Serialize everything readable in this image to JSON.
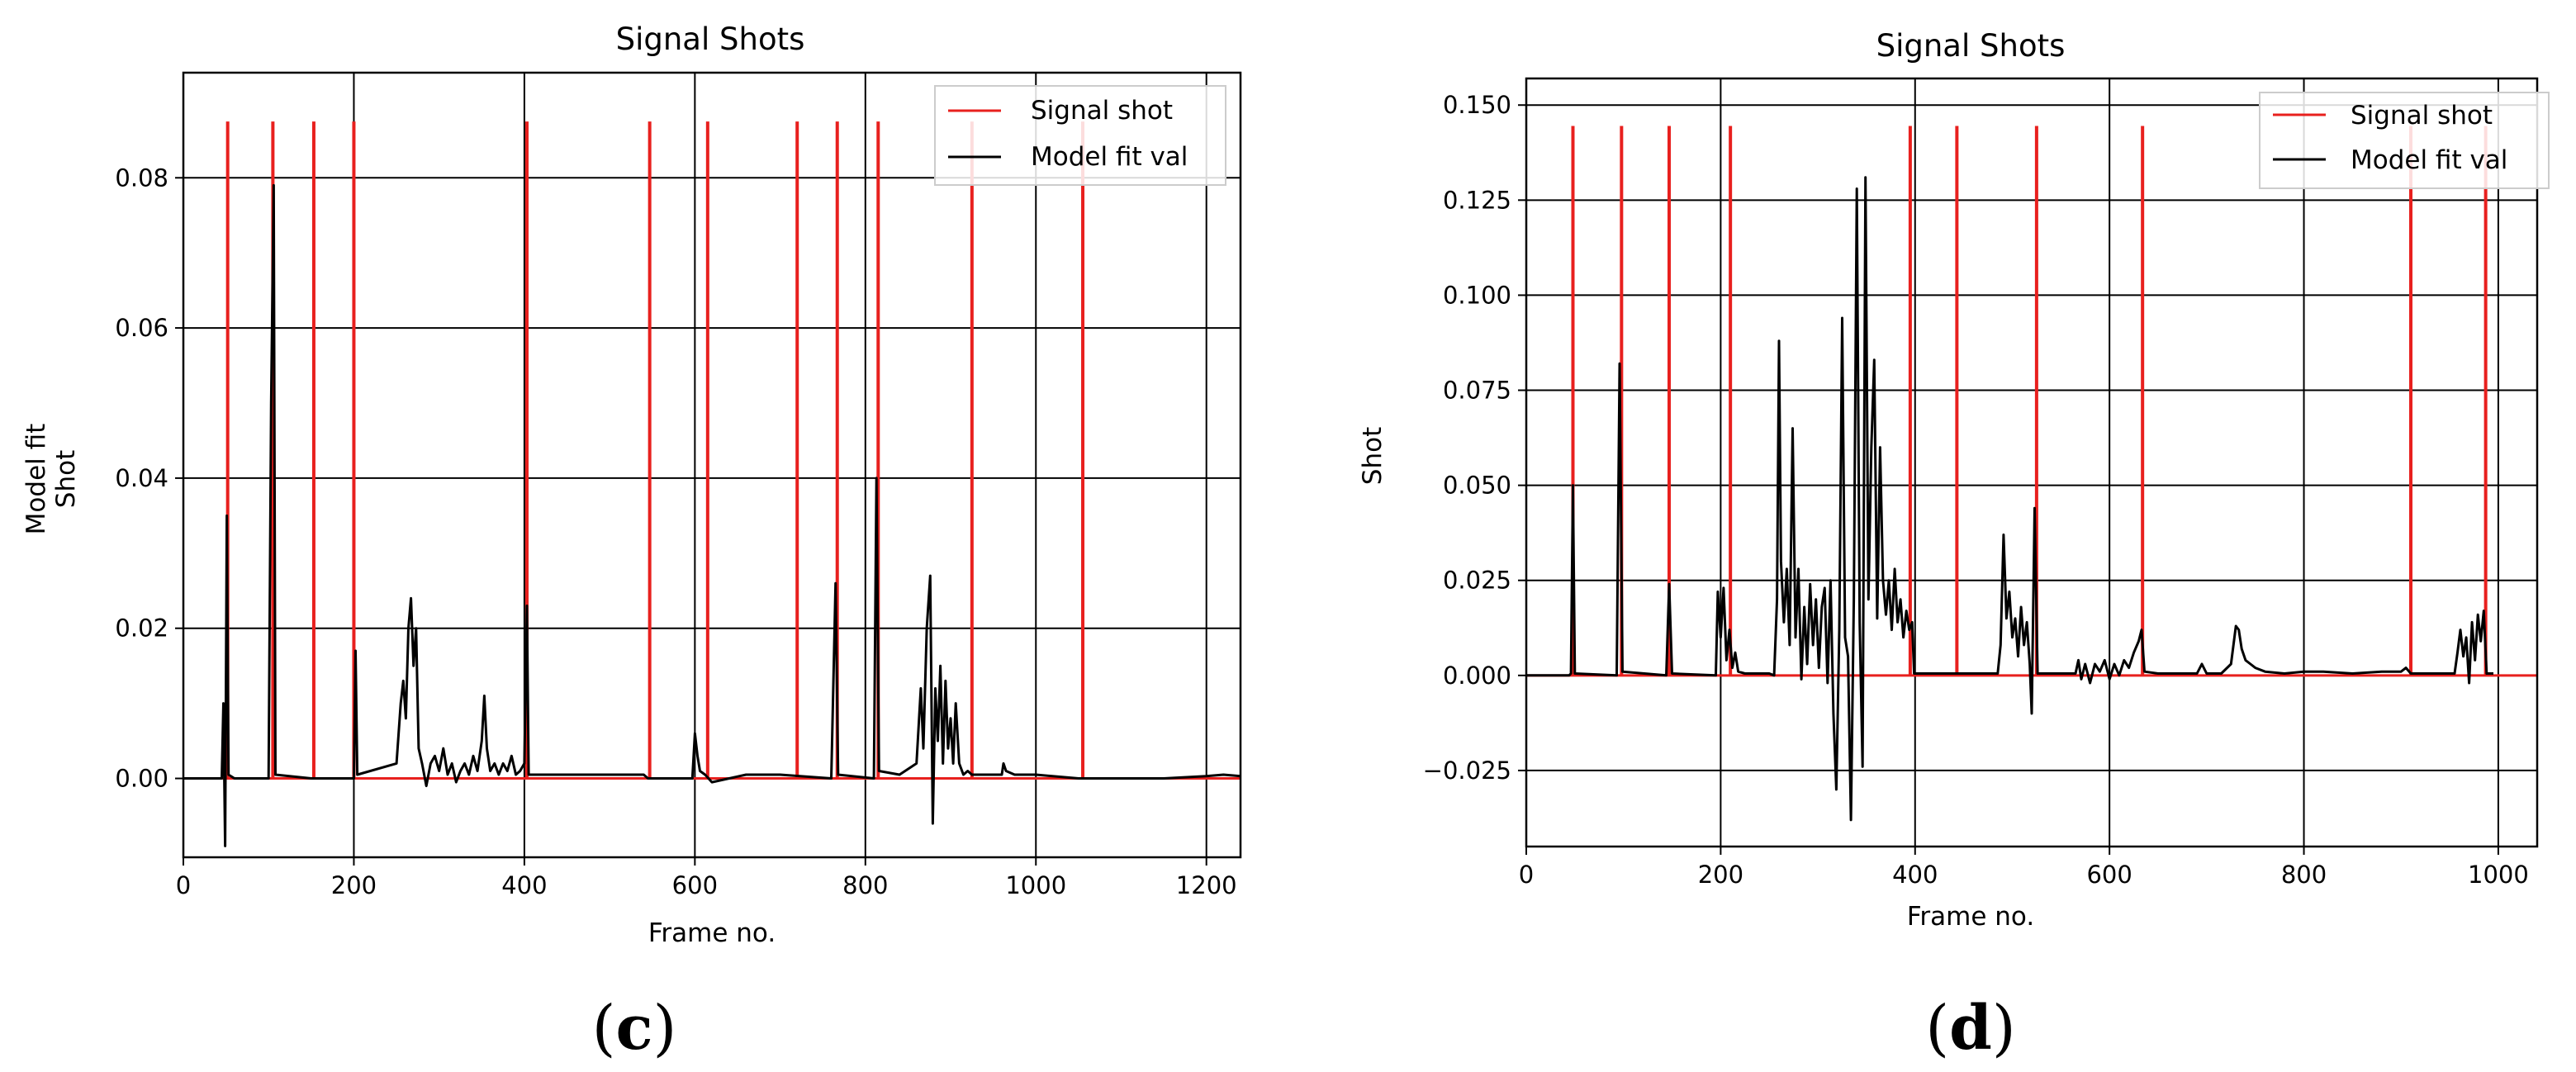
{
  "chart_data": [
    {
      "type": "line",
      "panel_label_open": "(",
      "panel_label": "c",
      "panel_label_close": ")",
      "title": "Signal Shots",
      "xlabel": "Frame no.",
      "ylabel_lines": [
        "Model fit",
        "Shot"
      ],
      "xlim": [
        0,
        1240
      ],
      "ylim": [
        -0.0105,
        0.094
      ],
      "xticks": [
        0,
        200,
        400,
        600,
        800,
        1000,
        1200
      ],
      "xtick_labels": [
        "0",
        "200",
        "400",
        "600",
        "800",
        "1000",
        "1200"
      ],
      "yticks": [
        0.0,
        0.02,
        0.04,
        0.06,
        0.08
      ],
      "ytick_labels": [
        "0.00",
        "0.02",
        "0.04",
        "0.06",
        "0.08"
      ],
      "grid": true,
      "legend_position": "top-right",
      "legend": [
        "Signal shot",
        "Model fit val"
      ],
      "colors": {
        "signal": "#e8201e",
        "model": "#000000",
        "grid": "#000000"
      },
      "series": [
        {
          "name": "Signal shot",
          "kind": "spikes",
          "height": 0.0875,
          "x": [
            52,
            105,
            153,
            200,
            403,
            547,
            615,
            720,
            767,
            815,
            925,
            1055
          ]
        },
        {
          "name": "Model fit val",
          "kind": "line",
          "points": [
            [
              0,
              0.0
            ],
            [
              45,
              0.0
            ],
            [
              47,
              0.01
            ],
            [
              49,
              -0.009
            ],
            [
              51,
              0.035
            ],
            [
              53,
              0.0005
            ],
            [
              60,
              0.0
            ],
            [
              100,
              0.0
            ],
            [
              103,
              0.05
            ],
            [
              106,
              0.079
            ],
            [
              108,
              0.0005
            ],
            [
              150,
              0.0
            ],
            [
              153,
              0.0
            ],
            [
              200,
              0.0
            ],
            [
              202,
              0.017
            ],
            [
              204,
              0.0005
            ],
            [
              250,
              0.002
            ],
            [
              255,
              0.01
            ],
            [
              258,
              0.013
            ],
            [
              261,
              0.008
            ],
            [
              264,
              0.02
            ],
            [
              267,
              0.024
            ],
            [
              270,
              0.015
            ],
            [
              273,
              0.02
            ],
            [
              276,
              0.004
            ],
            [
              280,
              0.002
            ],
            [
              285,
              -0.001
            ],
            [
              290,
              0.002
            ],
            [
              295,
              0.003
            ],
            [
              300,
              0.001
            ],
            [
              305,
              0.004
            ],
            [
              310,
              0.0005
            ],
            [
              315,
              0.002
            ],
            [
              320,
              -0.0005
            ],
            [
              325,
              0.001
            ],
            [
              330,
              0.002
            ],
            [
              335,
              0.0005
            ],
            [
              340,
              0.003
            ],
            [
              345,
              0.001
            ],
            [
              350,
              0.005
            ],
            [
              353,
              0.011
            ],
            [
              356,
              0.004
            ],
            [
              360,
              0.001
            ],
            [
              365,
              0.002
            ],
            [
              370,
              0.0005
            ],
            [
              375,
              0.002
            ],
            [
              380,
              0.001
            ],
            [
              385,
              0.003
            ],
            [
              390,
              0.0005
            ],
            [
              395,
              0.001
            ],
            [
              400,
              0.002
            ],
            [
              403,
              0.023
            ],
            [
              405,
              0.0005
            ],
            [
              430,
              0.0005
            ],
            [
              470,
              0.0005
            ],
            [
              500,
              0.0005
            ],
            [
              540,
              0.0005
            ],
            [
              545,
              0.0
            ],
            [
              597,
              0.0
            ],
            [
              600,
              0.006
            ],
            [
              603,
              0.003
            ],
            [
              606,
              0.001
            ],
            [
              612,
              0.0005
            ],
            [
              620,
              -0.0005
            ],
            [
              660,
              0.0005
            ],
            [
              700,
              0.0005
            ],
            [
              760,
              0.0
            ],
            [
              765,
              0.026
            ],
            [
              768,
              0.0005
            ],
            [
              810,
              0.0
            ],
            [
              813,
              0.04
            ],
            [
              816,
              0.001
            ],
            [
              840,
              0.0005
            ],
            [
              860,
              0.002
            ],
            [
              865,
              0.012
            ],
            [
              868,
              0.004
            ],
            [
              872,
              0.02
            ],
            [
              876,
              0.027
            ],
            [
              879,
              -0.006
            ],
            [
              882,
              0.012
            ],
            [
              885,
              0.005
            ],
            [
              888,
              0.015
            ],
            [
              891,
              0.002
            ],
            [
              894,
              0.013
            ],
            [
              897,
              0.004
            ],
            [
              900,
              0.008
            ],
            [
              903,
              0.002
            ],
            [
              906,
              0.01
            ],
            [
              910,
              0.002
            ],
            [
              915,
              0.0005
            ],
            [
              920,
              0.001
            ],
            [
              925,
              0.0005
            ],
            [
              950,
              0.0005
            ],
            [
              960,
              0.0005
            ],
            [
              962,
              0.002
            ],
            [
              965,
              0.001
            ],
            [
              975,
              0.0005
            ],
            [
              1000,
              0.0005
            ],
            [
              1050,
              0.0
            ],
            [
              1060,
              0.0
            ],
            [
              1100,
              0.0
            ],
            [
              1150,
              0.0
            ],
            [
              1200,
              0.0003
            ],
            [
              1220,
              0.0005
            ],
            [
              1240,
              0.0003
            ]
          ]
        }
      ]
    },
    {
      "type": "line",
      "panel_label_open": "(",
      "panel_label": "d",
      "panel_label_close": ")",
      "title": "Signal Shots",
      "xlabel": "Frame no.",
      "ylabel_lines": [
        "Shot"
      ],
      "xlim": [
        0,
        1040
      ],
      "ylim": [
        -0.045,
        0.157
      ],
      "xticks": [
        0,
        200,
        400,
        600,
        800,
        1000
      ],
      "xtick_labels": [
        "0",
        "200",
        "400",
        "600",
        "800",
        "1000"
      ],
      "yticks": [
        -0.025,
        0.0,
        0.025,
        0.05,
        0.075,
        0.1,
        0.125,
        0.15
      ],
      "ytick_labels": [
        "−0.025",
        "0.000",
        "0.025",
        "0.050",
        "0.075",
        "0.100",
        "0.125",
        "0.150"
      ],
      "grid": true,
      "legend_position": "top-right",
      "legend": [
        "Signal shot",
        "Model fit val"
      ],
      "colors": {
        "signal": "#e8201e",
        "model": "#000000",
        "grid": "#000000"
      },
      "series": [
        {
          "name": "Signal shot",
          "kind": "spikes",
          "height": 0.1445,
          "x": [
            48,
            98,
            147,
            210,
            395,
            443,
            525,
            634,
            910,
            987
          ]
        },
        {
          "name": "Model fit val",
          "kind": "line",
          "points": [
            [
              0,
              0.0
            ],
            [
              44,
              0.0
            ],
            [
              46,
              0.0005
            ],
            [
              48,
              0.05
            ],
            [
              50,
              0.0005
            ],
            [
              93,
              0.0
            ],
            [
              96,
              0.082
            ],
            [
              99,
              0.001
            ],
            [
              144,
              0.0
            ],
            [
              147,
              0.024
            ],
            [
              150,
              0.0005
            ],
            [
              195,
              0.0
            ],
            [
              197,
              0.022
            ],
            [
              200,
              0.01
            ],
            [
              203,
              0.023
            ],
            [
              206,
              0.004
            ],
            [
              209,
              0.012
            ],
            [
              212,
              0.002
            ],
            [
              215,
              0.006
            ],
            [
              218,
              0.001
            ],
            [
              225,
              0.0005
            ],
            [
              250,
              0.0005
            ],
            [
              255,
              0.0
            ],
            [
              258,
              0.02
            ],
            [
              260,
              0.088
            ],
            [
              262,
              0.03
            ],
            [
              265,
              0.014
            ],
            [
              268,
              0.028
            ],
            [
              271,
              0.008
            ],
            [
              274,
              0.065
            ],
            [
              277,
              0.01
            ],
            [
              280,
              0.028
            ],
            [
              283,
              -0.001
            ],
            [
              286,
              0.018
            ],
            [
              289,
              0.003
            ],
            [
              292,
              0.024
            ],
            [
              295,
              0.008
            ],
            [
              298,
              0.02
            ],
            [
              301,
              0.002
            ],
            [
              304,
              0.018
            ],
            [
              307,
              0.023
            ],
            [
              310,
              -0.002
            ],
            [
              313,
              0.025
            ],
            [
              316,
              -0.01
            ],
            [
              319,
              -0.03
            ],
            [
              322,
              0.012
            ],
            [
              325,
              0.094
            ],
            [
              328,
              0.01
            ],
            [
              331,
              0.005
            ],
            [
              334,
              -0.038
            ],
            [
              337,
              0.02
            ],
            [
              340,
              0.128
            ],
            [
              343,
              0.014
            ],
            [
              346,
              -0.024
            ],
            [
              349,
              0.131
            ],
            [
              352,
              0.02
            ],
            [
              355,
              0.06
            ],
            [
              358,
              0.083
            ],
            [
              361,
              0.015
            ],
            [
              364,
              0.06
            ],
            [
              367,
              0.025
            ],
            [
              370,
              0.016
            ],
            [
              373,
              0.025
            ],
            [
              376,
              0.012
            ],
            [
              379,
              0.028
            ],
            [
              382,
              0.014
            ],
            [
              385,
              0.02
            ],
            [
              388,
              0.01
            ],
            [
              391,
              0.017
            ],
            [
              394,
              0.012
            ],
            [
              397,
              0.014
            ],
            [
              399,
              0.0005
            ],
            [
              410,
              0.0005
            ],
            [
              450,
              0.0005
            ],
            [
              485,
              0.0005
            ],
            [
              488,
              0.008
            ],
            [
              491,
              0.037
            ],
            [
              494,
              0.015
            ],
            [
              497,
              0.022
            ],
            [
              500,
              0.01
            ],
            [
              503,
              0.015
            ],
            [
              506,
              0.005
            ],
            [
              509,
              0.018
            ],
            [
              512,
              0.008
            ],
            [
              515,
              0.014
            ],
            [
              518,
              0.003
            ],
            [
              520,
              -0.01
            ],
            [
              523,
              0.044
            ],
            [
              526,
              0.0005
            ],
            [
              550,
              0.0005
            ],
            [
              565,
              0.0005
            ],
            [
              568,
              0.004
            ],
            [
              571,
              -0.001
            ],
            [
              575,
              0.003
            ],
            [
              580,
              -0.002
            ],
            [
              585,
              0.003
            ],
            [
              590,
              0.001
            ],
            [
              595,
              0.004
            ],
            [
              600,
              -0.001
            ],
            [
              605,
              0.003
            ],
            [
              610,
              0.0
            ],
            [
              615,
              0.004
            ],
            [
              620,
              0.002
            ],
            [
              625,
              0.006
            ],
            [
              630,
              0.009
            ],
            [
              633,
              0.012
            ],
            [
              636,
              0.001
            ],
            [
              650,
              0.0005
            ],
            [
              690,
              0.0005
            ],
            [
              695,
              0.003
            ],
            [
              700,
              0.0005
            ],
            [
              710,
              0.0005
            ],
            [
              715,
              0.0005
            ],
            [
              725,
              0.003
            ],
            [
              730,
              0.013
            ],
            [
              733,
              0.012
            ],
            [
              736,
              0.007
            ],
            [
              740,
              0.004
            ],
            [
              745,
              0.003
            ],
            [
              750,
              0.002
            ],
            [
              760,
              0.001
            ],
            [
              780,
              0.0005
            ],
            [
              800,
              0.001
            ],
            [
              820,
              0.001
            ],
            [
              850,
              0.0005
            ],
            [
              880,
              0.001
            ],
            [
              900,
              0.001
            ],
            [
              905,
              0.002
            ],
            [
              910,
              0.0005
            ],
            [
              955,
              0.0005
            ],
            [
              958,
              0.006
            ],
            [
              961,
              0.012
            ],
            [
              964,
              0.005
            ],
            [
              967,
              0.01
            ],
            [
              970,
              -0.002
            ],
            [
              973,
              0.014
            ],
            [
              976,
              0.004
            ],
            [
              979,
              0.016
            ],
            [
              982,
              0.009
            ],
            [
              985,
              0.017
            ],
            [
              988,
              0.0005
            ],
            [
              995,
              0.0005
            ]
          ]
        }
      ]
    }
  ]
}
